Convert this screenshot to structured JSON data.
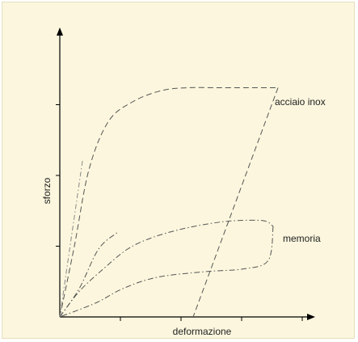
{
  "chart_data": {
    "type": "line",
    "title": "",
    "xlabel": "deformazione",
    "ylabel": "sforzo",
    "xlim": [
      0,
      10
    ],
    "ylim": [
      0,
      10
    ],
    "grid": false,
    "legend": "none",
    "series": [
      {
        "name": "acciaio inox",
        "style": "dashed",
        "loading": [
          [
            0,
            0
          ],
          [
            0.6,
            2.5
          ],
          [
            1.2,
            5.2
          ],
          [
            2.0,
            6.9
          ],
          [
            3.0,
            7.6
          ],
          [
            4.2,
            8.0
          ],
          [
            5.3,
            8.1
          ],
          [
            6.5,
            8.1
          ],
          [
            7.7,
            8.1
          ],
          [
            8.6,
            8.1
          ],
          [
            9.0,
            8.1
          ]
        ],
        "unloading": [
          [
            9.0,
            8.1
          ],
          [
            5.5,
            0
          ]
        ]
      },
      {
        "name": "memoria",
        "style": "dash-dot",
        "loading": [
          [
            0,
            0
          ],
          [
            0.8,
            0.9
          ],
          [
            1.8,
            1.7
          ],
          [
            2.8,
            2.4
          ],
          [
            3.8,
            2.8
          ],
          [
            5.0,
            3.1
          ],
          [
            6.2,
            3.3
          ],
          [
            7.2,
            3.4
          ],
          [
            8.4,
            3.4
          ],
          [
            8.8,
            3.2
          ]
        ],
        "unloading": [
          [
            8.8,
            3.2
          ],
          [
            8.6,
            2.0
          ],
          [
            7.6,
            1.7
          ],
          [
            6.0,
            1.6
          ],
          [
            4.0,
            1.4
          ],
          [
            2.6,
            1.0
          ],
          [
            1.5,
            0.5
          ],
          [
            0,
            0
          ]
        ],
        "return": [
          [
            0,
            0
          ],
          [
            0.8,
            1.0
          ],
          [
            1.6,
            2.4
          ],
          [
            2.4,
            3.0
          ]
        ]
      },
      {
        "name": "",
        "style": "dash-dot-light",
        "points": [
          [
            0,
            0
          ],
          [
            0.95,
            5.6
          ]
        ]
      }
    ],
    "labels": {
      "steel": "acciaio inox",
      "memory": "memoria"
    }
  },
  "colors": {
    "background": "#fbf6dd",
    "axis": "#000000",
    "curve": "#555555"
  }
}
